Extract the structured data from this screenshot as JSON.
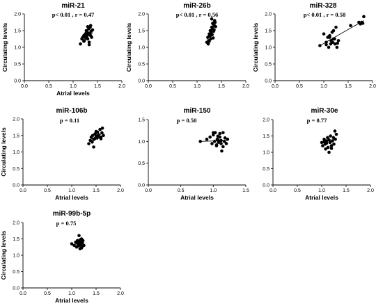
{
  "chart_data": [
    {
      "type": "scatter",
      "title": "miR-21",
      "annotation": "p< 0.01 , r = 0.47",
      "xlabel": "Atrial levels",
      "ylabel": "Circulating levels",
      "xlim": [
        0,
        2
      ],
      "ylim": [
        0,
        2
      ],
      "x_ticks": [
        "0.0",
        "0.5",
        "1.0",
        "1.5",
        "2.0"
      ],
      "y_ticks": [
        "0.0",
        "0.5",
        "1.0",
        "1.5",
        "2.0"
      ],
      "x": [
        1.15,
        1.18,
        1.2,
        1.22,
        1.23,
        1.25,
        1.26,
        1.27,
        1.28,
        1.29,
        1.3,
        1.31,
        1.32,
        1.33,
        1.34,
        1.35,
        1.36,
        1.37,
        1.38,
        1.4,
        1.22,
        1.3,
        1.33,
        1.27,
        1.36
      ],
      "y": [
        1.1,
        1.25,
        1.3,
        1.35,
        1.2,
        1.4,
        1.28,
        1.5,
        1.32,
        1.45,
        1.25,
        1.38,
        1.55,
        1.15,
        1.42,
        1.6,
        1.65,
        1.48,
        1.3,
        1.52,
        1.18,
        1.62,
        1.08,
        1.43,
        1.35
      ],
      "fit_line": [
        [
          1.15,
          1.27
        ],
        [
          1.4,
          1.42
        ]
      ]
    },
    {
      "type": "scatter",
      "title": "miR-26b",
      "annotation": "p< 0.01 , r = 0.56",
      "xlabel": "",
      "ylabel": "Circulating levels",
      "xlim": [
        0,
        2
      ],
      "ylim": [
        0,
        2
      ],
      "x_ticks": [
        "0.0",
        "0.5",
        "1.0",
        "1.5",
        "2.0"
      ],
      "y_ticks": [
        "0.0",
        "0.5",
        "1.0",
        "1.5",
        "2.0"
      ],
      "x": [
        1.2,
        1.22,
        1.24,
        1.25,
        1.26,
        1.27,
        1.28,
        1.29,
        1.3,
        1.31,
        1.32,
        1.33,
        1.34,
        1.35,
        1.36,
        1.37,
        1.25,
        1.28,
        1.3,
        1.33,
        1.35,
        1.38,
        1.23,
        1.27,
        1.32
      ],
      "y": [
        1.15,
        1.3,
        1.2,
        1.4,
        1.35,
        1.5,
        1.25,
        1.45,
        1.6,
        1.38,
        1.55,
        1.7,
        1.48,
        1.65,
        1.8,
        1.75,
        1.18,
        1.42,
        1.85,
        1.28,
        1.52,
        1.62,
        1.1,
        1.34,
        1.72
      ],
      "fit_line": [
        [
          1.2,
          1.24
        ],
        [
          1.38,
          1.7
        ]
      ]
    },
    {
      "type": "scatter",
      "title": "miR-328",
      "annotation": "p< 0.01 , r = 0.58",
      "xlabel": "",
      "ylabel": "Circulating levels",
      "xlim": [
        0,
        2
      ],
      "ylim": [
        0,
        2
      ],
      "x_ticks": [
        "0.0",
        "0.5",
        "1.0",
        "1.5",
        "2.0"
      ],
      "y_ticks": [
        "0.0",
        "0.5",
        "1.0",
        "1.5",
        "2.0"
      ],
      "x": [
        0.92,
        1.0,
        1.05,
        1.08,
        1.1,
        1.12,
        1.14,
        1.15,
        1.17,
        1.18,
        1.2,
        1.22,
        1.23,
        1.25,
        1.27,
        1.3,
        1.05,
        1.12,
        1.2,
        1.28,
        1.55,
        1.72,
        1.75,
        1.78,
        1.8,
        1.82
      ],
      "y": [
        1.05,
        1.4,
        1.15,
        1.3,
        1.0,
        1.35,
        1.1,
        1.2,
        1.45,
        1.15,
        1.5,
        1.25,
        1.1,
        1.6,
        1.0,
        1.2,
        1.08,
        1.3,
        1.25,
        1.12,
        1.65,
        1.75,
        1.7,
        1.75,
        1.72,
        1.92
      ],
      "fit_line": [
        [
          0.92,
          1.05
        ],
        [
          1.82,
          1.8
        ]
      ]
    },
    {
      "type": "scatter",
      "title": "miR-106b",
      "annotation": "p = 0.11",
      "xlabel": "Atrial levels",
      "ylabel": "Circulating levels",
      "xlim": [
        0,
        2
      ],
      "ylim": [
        0,
        2
      ],
      "x_ticks": [
        "0.0",
        "0.5",
        "1.0",
        "1.5",
        "2.0"
      ],
      "y_ticks": [
        "0.0",
        "0.5",
        "1.0",
        "1.5",
        "2.0"
      ],
      "x": [
        1.35,
        1.38,
        1.4,
        1.42,
        1.43,
        1.45,
        1.47,
        1.48,
        1.5,
        1.52,
        1.53,
        1.55,
        1.57,
        1.58,
        1.6,
        1.62,
        1.63,
        1.65,
        1.45,
        1.5,
        1.55,
        1.6
      ],
      "y": [
        1.25,
        1.35,
        1.45,
        1.3,
        1.5,
        1.15,
        1.4,
        1.55,
        1.48,
        1.42,
        1.6,
        1.5,
        1.45,
        1.68,
        1.4,
        1.58,
        1.72,
        1.5,
        1.38,
        1.62,
        1.52,
        1.45
      ],
      "fit_line": [
        [
          1.35,
          1.35
        ],
        [
          1.65,
          1.58
        ]
      ]
    },
    {
      "type": "scatter",
      "title": "miR-150",
      "annotation": "p = 0.50",
      "xlabel": "Atrial levels",
      "ylabel": "",
      "xlim": [
        0,
        1.5
      ],
      "ylim": [
        0,
        1.5
      ],
      "x_ticks": [
        "0.0",
        "0.5",
        "1.0",
        "1.5"
      ],
      "y_ticks": [
        "0.0",
        "0.5",
        "1.0",
        "1.5"
      ],
      "x": [
        0.8,
        0.9,
        0.95,
        0.98,
        1.0,
        1.02,
        1.03,
        1.05,
        1.06,
        1.07,
        1.08,
        1.1,
        1.12,
        1.13,
        1.15,
        1.17,
        1.18,
        1.2,
        1.22,
        1.0,
        1.05,
        1.1,
        1.15,
        1.08,
        1.12
      ],
      "y": [
        1.0,
        1.05,
        1.1,
        0.95,
        1.15,
        1.0,
        1.2,
        0.9,
        1.05,
        1.12,
        0.98,
        1.18,
        1.02,
        0.78,
        1.2,
        1.0,
        1.08,
        0.95,
        1.05,
        1.2,
        0.92,
        1.1,
        0.88,
        1.02,
        0.95
      ],
      "fit_line": [
        [
          0.8,
          1.0
        ],
        [
          1.22,
          1.02
        ]
      ]
    },
    {
      "type": "scatter",
      "title": "miR-30e",
      "annotation": "p = 0.77",
      "xlabel": "Atrial levels",
      "ylabel": "",
      "xlim": [
        0,
        2
      ],
      "ylim": [
        0,
        2
      ],
      "x_ticks": [
        "0.0",
        "0.5",
        "1.0",
        "1.5",
        "2.0"
      ],
      "y_ticks": [
        "0.0",
        "0.5",
        "1.0",
        "1.5",
        "2.0"
      ],
      "x": [
        1.0,
        1.02,
        1.05,
        1.07,
        1.08,
        1.1,
        1.12,
        1.13,
        1.15,
        1.17,
        1.18,
        1.2,
        1.22,
        1.24,
        1.25,
        1.27,
        1.28,
        1.3,
        1.1,
        1.15,
        1.2,
        1.05
      ],
      "y": [
        1.3,
        1.2,
        1.4,
        1.25,
        1.1,
        1.35,
        1.45,
        1.15,
        1.0,
        1.3,
        1.5,
        1.2,
        1.35,
        1.45,
        1.25,
        1.65,
        1.4,
        1.55,
        1.28,
        1.38,
        1.12,
        1.32
      ],
      "fit_line": [
        [
          1.0,
          1.28
        ],
        [
          1.3,
          1.42
        ]
      ]
    },
    {
      "type": "scatter",
      "title": "miR-99b-5p",
      "annotation": "p = 0.75",
      "xlabel": "Atrial levels",
      "ylabel": "Circulating levels",
      "xlim": [
        0,
        2
      ],
      "ylim": [
        0,
        2
      ],
      "x_ticks": [
        "0.0",
        "0.5",
        "1.0",
        "1.5",
        "2.0"
      ],
      "y_ticks": [
        "0.0",
        "0.5",
        "1.0",
        "1.5",
        "2.0"
      ],
      "x": [
        1.0,
        1.05,
        1.08,
        1.1,
        1.12,
        1.13,
        1.15,
        1.16,
        1.17,
        1.18,
        1.19,
        1.2,
        1.21,
        1.22,
        1.23,
        1.25,
        1.12,
        1.15,
        1.18,
        1.2,
        1.1
      ],
      "y": [
        1.35,
        1.3,
        1.4,
        1.25,
        1.45,
        1.35,
        1.6,
        1.3,
        1.2,
        1.42,
        1.32,
        1.5,
        1.25,
        1.38,
        1.45,
        1.3,
        1.28,
        1.38,
        1.48,
        1.22,
        1.4
      ],
      "fit_line": [
        [
          1.0,
          1.32
        ],
        [
          1.25,
          1.38
        ]
      ]
    }
  ]
}
